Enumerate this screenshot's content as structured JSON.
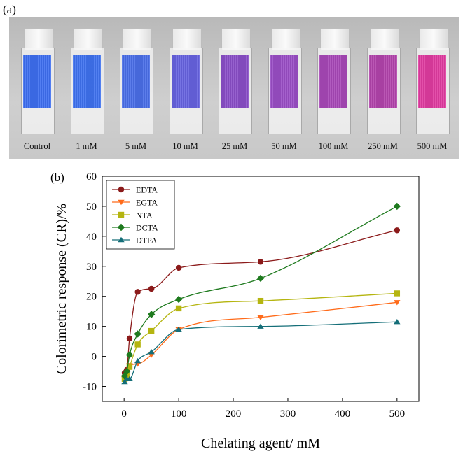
{
  "panel_a": {
    "label": "(a)",
    "vials": [
      {
        "label": "Control",
        "color": "#3e6ff0"
      },
      {
        "label": "1 mM",
        "color": "#3f72ef"
      },
      {
        "label": "5 mM",
        "color": "#4a6ee8"
      },
      {
        "label": "10 mM",
        "color": "#6763e0"
      },
      {
        "label": "25 mM",
        "color": "#8a4fc8"
      },
      {
        "label": "50 mM",
        "color": "#9a4ec6"
      },
      {
        "label": "100 mM",
        "color": "#a848b8"
      },
      {
        "label": "250 mM",
        "color": "#b244ac"
      },
      {
        "label": "500 mM",
        "color": "#e03ca0"
      }
    ]
  },
  "chart_data": {
    "panel_label": "(b)",
    "type": "line",
    "xlabel": "Chelating agent/ mM",
    "ylabel": "Colorimetric response (CR)/%",
    "xlim": [
      -40,
      540
    ],
    "ylim": [
      -15,
      60
    ],
    "xticks": [
      0,
      100,
      200,
      300,
      400,
      500
    ],
    "yticks": [
      -10,
      0,
      10,
      20,
      30,
      40,
      50,
      60
    ],
    "grid": false,
    "legend_position": "top-left",
    "x": [
      1,
      5,
      10,
      25,
      50,
      100,
      250,
      500
    ],
    "series": [
      {
        "name": "EDTA",
        "color": "#8b1a1a",
        "marker": "circle",
        "values": [
          -5.5,
          -4.5,
          6,
          21.5,
          22.5,
          29.5,
          31.5,
          42
        ]
      },
      {
        "name": "EGTA",
        "color": "#ff6b1a",
        "marker": "triangle-down",
        "values": [
          -7.5,
          -6.5,
          -3,
          -2.5,
          0.5,
          9,
          13,
          18
        ]
      },
      {
        "name": "NTA",
        "color": "#b5b510",
        "marker": "square",
        "values": [
          -7.5,
          -6.5,
          -3.5,
          4,
          8.5,
          16,
          18.5,
          21
        ]
      },
      {
        "name": "DCTA",
        "color": "#1e7a1e",
        "marker": "diamond",
        "values": [
          -6.5,
          -5,
          0.5,
          7.5,
          14,
          19,
          26,
          50
        ]
      },
      {
        "name": "DTPA",
        "color": "#146e78",
        "marker": "triangle-up",
        "values": [
          -8.5,
          -7.5,
          -7.5,
          -1.5,
          1.5,
          9,
          10,
          11.5
        ]
      }
    ]
  }
}
